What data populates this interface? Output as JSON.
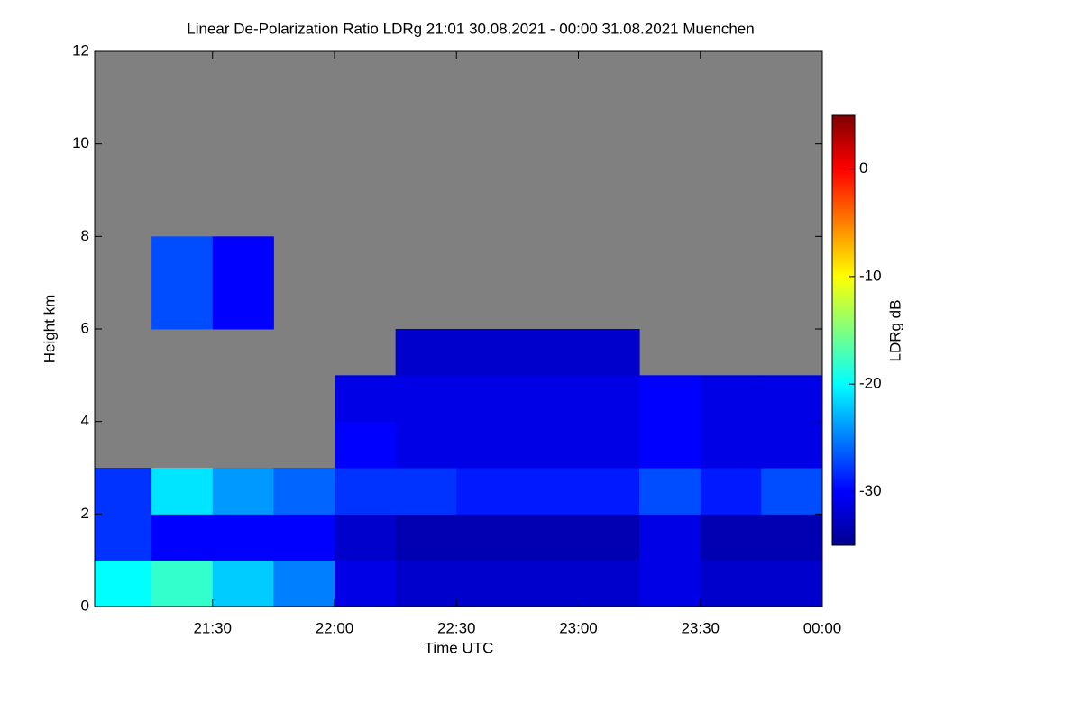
{
  "chart_data": {
    "type": "heatmap",
    "title": "Linear De-Polarization Ratio LDRg   21:01 30.08.2021 - 00:00 31.08.2021 Muenchen",
    "x_label": "Time UTC",
    "y_label": "Height km",
    "colorbar_label": "LDRg dB",
    "xlim": [
      1,
      180
    ],
    "xticks": [
      {
        "value": 30,
        "label": "21:30"
      },
      {
        "value": 60,
        "label": "22:00"
      },
      {
        "value": 90,
        "label": "22:30"
      },
      {
        "value": 120,
        "label": "23:00"
      },
      {
        "value": 150,
        "label": "23:30"
      },
      {
        "value": 180,
        "label": "00:00"
      }
    ],
    "ylim": [
      0,
      12
    ],
    "yticks": [
      0,
      2,
      4,
      6,
      8,
      10,
      12
    ],
    "clim": [
      -35,
      5
    ],
    "cticks": [
      0,
      -10,
      -20,
      -30
    ],
    "colormap": "jet",
    "background": "#808080",
    "x_bins": [
      1,
      15,
      30,
      45,
      60,
      75,
      90,
      105,
      120,
      135,
      150,
      165,
      180
    ],
    "y_bins": [
      0,
      1,
      2,
      3,
      4,
      5,
      6,
      7,
      8
    ],
    "z": [
      [
        -20,
        -18,
        -22,
        -25,
        -31,
        -32,
        -32,
        -32,
        -32,
        -31,
        -32,
        -32
      ],
      [
        -28,
        -30,
        -30,
        -30,
        -32,
        -33,
        -33,
        -33,
        -33,
        -31,
        -33,
        -33
      ],
      [
        -28,
        -21,
        -24,
        -26,
        -28,
        -28,
        -29,
        -29,
        -29,
        -27,
        -29,
        -27
      ],
      [
        null,
        null,
        null,
        null,
        -30,
        -31,
        -31,
        -31,
        -31,
        -30,
        -31,
        -31
      ],
      [
        null,
        null,
        null,
        null,
        -31,
        -31,
        -31,
        -31,
        -31,
        -30,
        -31,
        -31
      ],
      [
        null,
        null,
        null,
        null,
        null,
        -32,
        -32,
        -32,
        -32,
        null,
        null,
        null
      ],
      [
        null,
        -27,
        -30,
        null,
        null,
        null,
        null,
        null,
        null,
        null,
        null,
        null
      ],
      [
        null,
        -27,
        -30,
        null,
        null,
        null,
        null,
        null,
        null,
        null,
        null,
        null
      ]
    ]
  }
}
